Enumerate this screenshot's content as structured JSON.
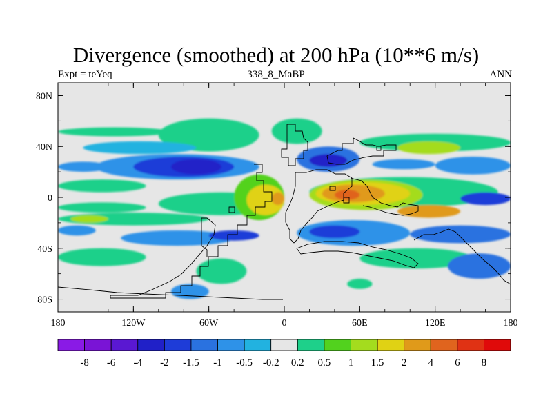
{
  "chart_data": {
    "type": "heatmap",
    "title": "Divergence (smoothed) at 200 hPa (10**6 m/s)",
    "left_label": "Expt = teYeq",
    "center_label": "338_8_MaBP",
    "right_label": "ANN",
    "xlim": [
      -180,
      180
    ],
    "ylim": [
      -90,
      90
    ],
    "x_ticks": [
      {
        "value": -180,
        "label": "180"
      },
      {
        "value": -120,
        "label": "120W"
      },
      {
        "value": -60,
        "label": "60W"
      },
      {
        "value": 0,
        "label": "0"
      },
      {
        "value": 60,
        "label": "60E"
      },
      {
        "value": 120,
        "label": "120E"
      },
      {
        "value": 180,
        "label": "180"
      }
    ],
    "y_ticks": [
      {
        "value": 80,
        "label": "80N"
      },
      {
        "value": 40,
        "label": "40N"
      },
      {
        "value": 0,
        "label": "0"
      },
      {
        "value": -40,
        "label": "40S"
      },
      {
        "value": -80,
        "label": "80S"
      }
    ],
    "levels": [
      "-8",
      "-6",
      "-4",
      "-2",
      "-1.5",
      "-1",
      "-0.5",
      "-0.2",
      "0.2",
      "0.5",
      "1",
      "1.5",
      "2",
      "4",
      "6",
      "8"
    ],
    "colors": [
      "#8a1ae6",
      "#7a14d6",
      "#5a18d2",
      "#2020c8",
      "#1e3cd8",
      "#2a72e0",
      "#2e92e8",
      "#22b2e0",
      "#e6e6e6",
      "#1ed08a",
      "#52d21e",
      "#a4dc1e",
      "#e0d214",
      "#e09a1a",
      "#e0641e",
      "#e03214",
      "#e00a0a"
    ],
    "background_value_class": 8,
    "features": [
      {
        "lon0": -180,
        "lon1": -90,
        "lat0": 48,
        "lat1": 55,
        "cls": 9
      },
      {
        "lon0": -100,
        "lon1": -20,
        "lat0": 36,
        "lat1": 62,
        "cls": 9
      },
      {
        "lon0": -160,
        "lon1": -70,
        "lat0": 34,
        "lat1": 44,
        "cls": 7
      },
      {
        "lon0": -150,
        "lon1": -20,
        "lat0": 14,
        "lat1": 34,
        "cls": 6
      },
      {
        "lon0": -120,
        "lon1": -40,
        "lat0": 16,
        "lat1": 32,
        "cls": 4
      },
      {
        "lon0": -90,
        "lon1": -50,
        "lat0": 18,
        "lat1": 30,
        "cls": 3
      },
      {
        "lon0": -180,
        "lon1": -110,
        "lat0": 4,
        "lat1": 14,
        "cls": 9
      },
      {
        "lon0": -180,
        "lon1": -140,
        "lat0": 20,
        "lat1": 28,
        "cls": 6
      },
      {
        "lon0": -100,
        "lon1": 0,
        "lat0": -14,
        "lat1": 4,
        "cls": 9
      },
      {
        "lon0": -40,
        "lon1": 0,
        "lat0": -18,
        "lat1": 18,
        "cls": 10
      },
      {
        "lon0": -30,
        "lon1": 0,
        "lat0": -14,
        "lat1": 10,
        "cls": 12
      },
      {
        "lon0": -10,
        "lon1": 0,
        "lat0": -6,
        "lat1": 4,
        "cls": 13
      },
      {
        "lon0": -180,
        "lon1": -110,
        "lat0": -12,
        "lat1": -4,
        "cls": 9
      },
      {
        "lon0": -180,
        "lon1": -60,
        "lat0": -22,
        "lat1": -12,
        "cls": 9
      },
      {
        "lon0": -170,
        "lon1": -140,
        "lat0": -20,
        "lat1": -14,
        "cls": 11
      },
      {
        "lon0": -130,
        "lon1": -40,
        "lat0": -38,
        "lat1": -26,
        "cls": 6
      },
      {
        "lon0": -60,
        "lon1": -20,
        "lat0": -34,
        "lat1": -26,
        "cls": 4
      },
      {
        "lon0": -180,
        "lon1": -150,
        "lat0": -30,
        "lat1": -22,
        "cls": 6
      },
      {
        "lon0": -180,
        "lon1": -110,
        "lat0": -54,
        "lat1": -40,
        "cls": 9
      },
      {
        "lon0": -70,
        "lon1": -30,
        "lat0": -68,
        "lat1": -48,
        "cls": 9
      },
      {
        "lon0": -90,
        "lon1": -60,
        "lat0": -80,
        "lat1": -68,
        "cls": 6
      },
      {
        "lon0": -10,
        "lon1": 30,
        "lat0": 42,
        "lat1": 62,
        "cls": 9
      },
      {
        "lon0": 10,
        "lon1": 60,
        "lat0": 20,
        "lat1": 40,
        "cls": 5
      },
      {
        "lon0": 20,
        "lon1": 50,
        "lat0": 24,
        "lat1": 34,
        "cls": 3
      },
      {
        "lon0": 60,
        "lon1": 180,
        "lat0": 36,
        "lat1": 50,
        "cls": 9
      },
      {
        "lon0": 90,
        "lon1": 140,
        "lat0": 34,
        "lat1": 44,
        "cls": 11
      },
      {
        "lon0": 70,
        "lon1": 120,
        "lat0": 22,
        "lat1": 30,
        "cls": 6
      },
      {
        "lon0": 120,
        "lon1": 180,
        "lat0": 18,
        "lat1": 32,
        "cls": 6
      },
      {
        "lon0": 20,
        "lon1": 170,
        "lat0": -8,
        "lat1": 16,
        "cls": 9
      },
      {
        "lon0": 20,
        "lon1": 110,
        "lat0": -10,
        "lat1": 14,
        "cls": 11
      },
      {
        "lon0": 25,
        "lon1": 100,
        "lat0": -6,
        "lat1": 12,
        "cls": 12
      },
      {
        "lon0": 30,
        "lon1": 80,
        "lat0": -4,
        "lat1": 10,
        "cls": 13
      },
      {
        "lon0": 40,
        "lon1": 60,
        "lat0": -2,
        "lat1": 6,
        "cls": 14
      },
      {
        "lon0": 140,
        "lon1": 180,
        "lat0": -6,
        "lat1": 4,
        "cls": 4
      },
      {
        "lon0": 90,
        "lon1": 140,
        "lat0": -16,
        "lat1": -6,
        "cls": 13
      },
      {
        "lon0": 10,
        "lon1": 100,
        "lat0": -38,
        "lat1": -18,
        "cls": 6
      },
      {
        "lon0": 20,
        "lon1": 60,
        "lat0": -32,
        "lat1": -22,
        "cls": 4
      },
      {
        "lon0": 100,
        "lon1": 180,
        "lat0": -36,
        "lat1": -22,
        "cls": 5
      },
      {
        "lon0": 60,
        "lon1": 150,
        "lat0": -56,
        "lat1": -40,
        "cls": 9
      },
      {
        "lon0": 130,
        "lon1": 180,
        "lat0": -64,
        "lat1": -44,
        "cls": 5
      },
      {
        "lon0": 50,
        "lon1": 70,
        "lat0": -72,
        "lat1": -64,
        "cls": 9
      }
    ]
  }
}
